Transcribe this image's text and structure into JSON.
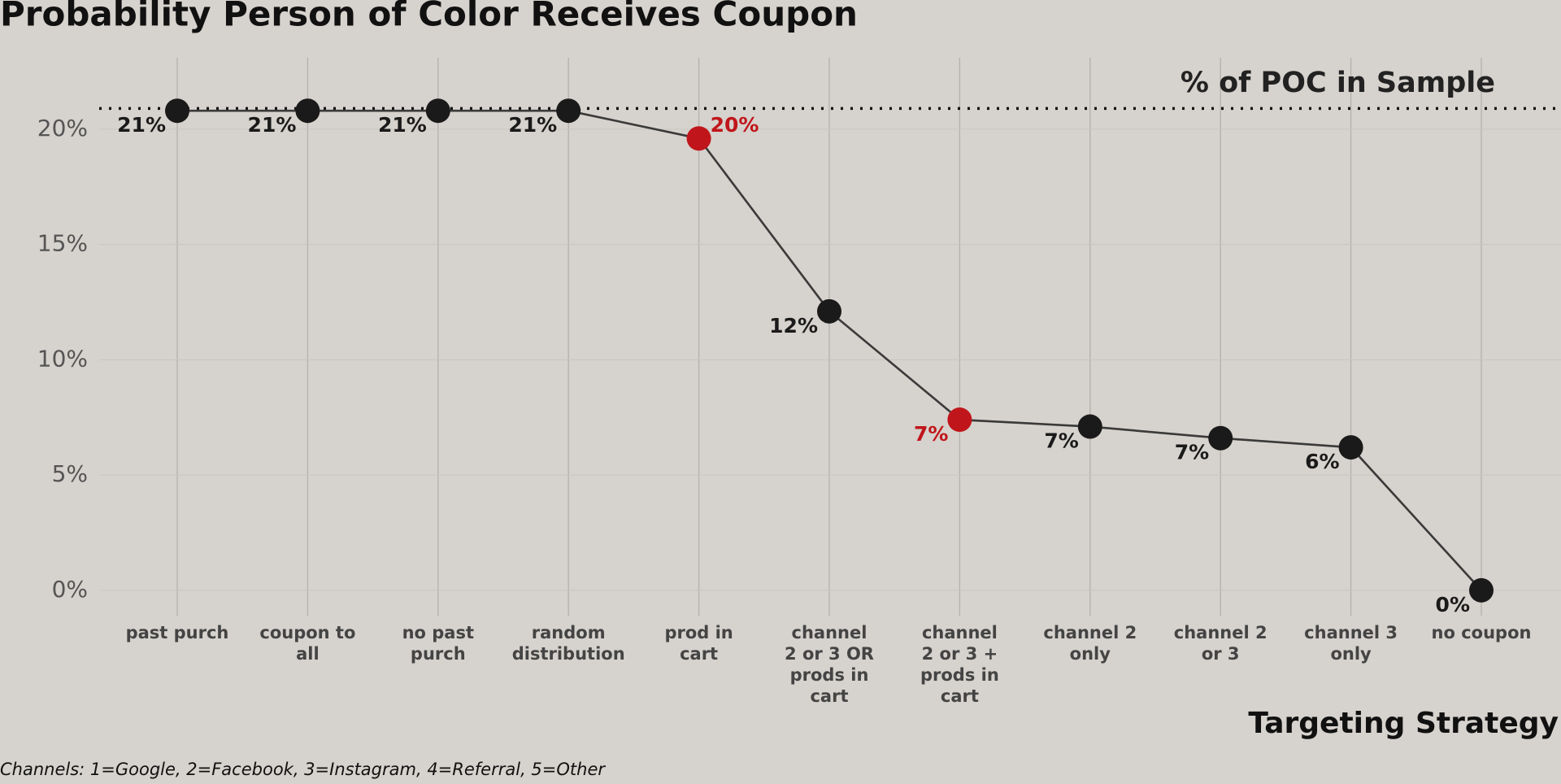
{
  "chart_data": {
    "type": "line",
    "title": "Probability Person of Color Receives Coupon",
    "x_label": "Targeting Strategy",
    "caption": "Channels: 1=Google, 2=Facebook, 3=Instagram, 4=Referral, 5=Other",
    "categories": [
      "past purch",
      "coupon to\nall",
      "no past\npurch",
      "random\ndistribution",
      "prod in\ncart",
      "channel\n2 or 3 OR\nprods in\ncart",
      "channel\n2 or 3 +\nprods in\ncart",
      "channel 2\nonly",
      "channel 2\nor 3",
      "channel 3\nonly",
      "no coupon"
    ],
    "values": [
      20.8,
      20.8,
      20.8,
      20.8,
      19.6,
      12.1,
      7.4,
      7.1,
      6.6,
      6.2,
      0
    ],
    "value_labels": [
      "21%",
      "21%",
      "21%",
      "21%",
      "20%",
      "12%",
      "7%",
      "7%",
      "7%",
      "6%",
      "0%"
    ],
    "point_colors": [
      "#1a1a1a",
      "#1a1a1a",
      "#1a1a1a",
      "#1a1a1a",
      "#c0161b",
      "#1a1a1a",
      "#c0161b",
      "#1a1a1a",
      "#1a1a1a",
      "#1a1a1a",
      "#1a1a1a"
    ],
    "line_color": "#3a3a3a",
    "reference_line": {
      "label": "% of POC in Sample",
      "value": 20.9
    },
    "ylim": [
      -1.1,
      23.1
    ],
    "yticks": [
      {
        "value": 0,
        "label": "0%"
      },
      {
        "value": 5,
        "label": "5%"
      },
      {
        "value": 10,
        "label": "10%"
      },
      {
        "value": 15,
        "label": "15%"
      },
      {
        "value": 20,
        "label": "20%"
      }
    ],
    "grid": true
  }
}
